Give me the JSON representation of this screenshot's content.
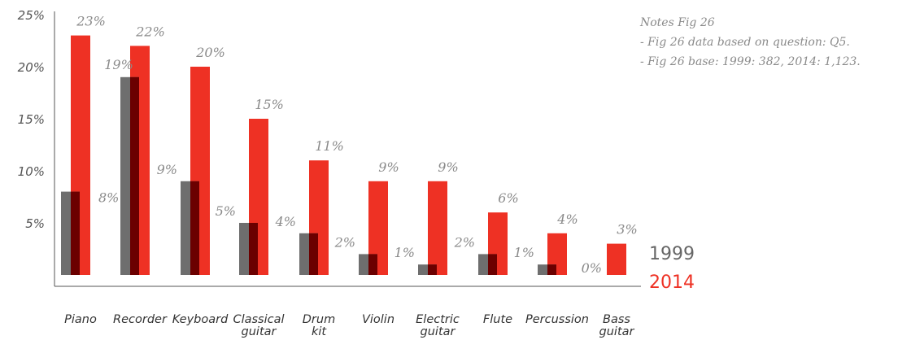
{
  "notes": {
    "title": "Notes Fig 26",
    "lines": [
      "- Fig 26 data based on question: Q5.",
      "- Fig 26 base: 1999: 382, 2014: 1,123."
    ]
  },
  "chart_data": {
    "type": "bar",
    "categories": [
      [
        "Piano"
      ],
      [
        "Recorder"
      ],
      [
        "Keyboard"
      ],
      [
        "Classical",
        "guitar"
      ],
      [
        "Drum",
        "kit"
      ],
      [
        "Violin"
      ],
      [
        "Electric",
        "guitar"
      ],
      [
        "Flute"
      ],
      [
        "Percussion"
      ],
      [
        "Bass",
        "guitar"
      ]
    ],
    "series": [
      {
        "name": "1999",
        "color": "#6e6e6e",
        "overlap_color": "#6b0000",
        "values": [
          8,
          19,
          9,
          5,
          4,
          2,
          1,
          2,
          1,
          0
        ],
        "labels": [
          "8%",
          "19%",
          "9%",
          "5%",
          "4%",
          "2%",
          "1%",
          "2%",
          "1%",
          "0%"
        ]
      },
      {
        "name": "2014",
        "color": "#ee3124",
        "values": [
          23,
          22,
          20,
          15,
          11,
          9,
          9,
          6,
          4,
          3
        ],
        "labels": [
          "23%",
          "22%",
          "20%",
          "15%",
          "11%",
          "9%",
          "9%",
          "6%",
          "4%",
          "3%"
        ]
      }
    ],
    "y_ticks": [
      {
        "value": 25,
        "label": "25%"
      },
      {
        "value": 20,
        "label": "20%"
      },
      {
        "value": 15,
        "label": "15%"
      },
      {
        "value": 10,
        "label": "10%"
      },
      {
        "value": 5,
        "label": "5%"
      }
    ],
    "ylim": [
      0,
      25
    ],
    "grid": false,
    "legend_position": "right"
  }
}
